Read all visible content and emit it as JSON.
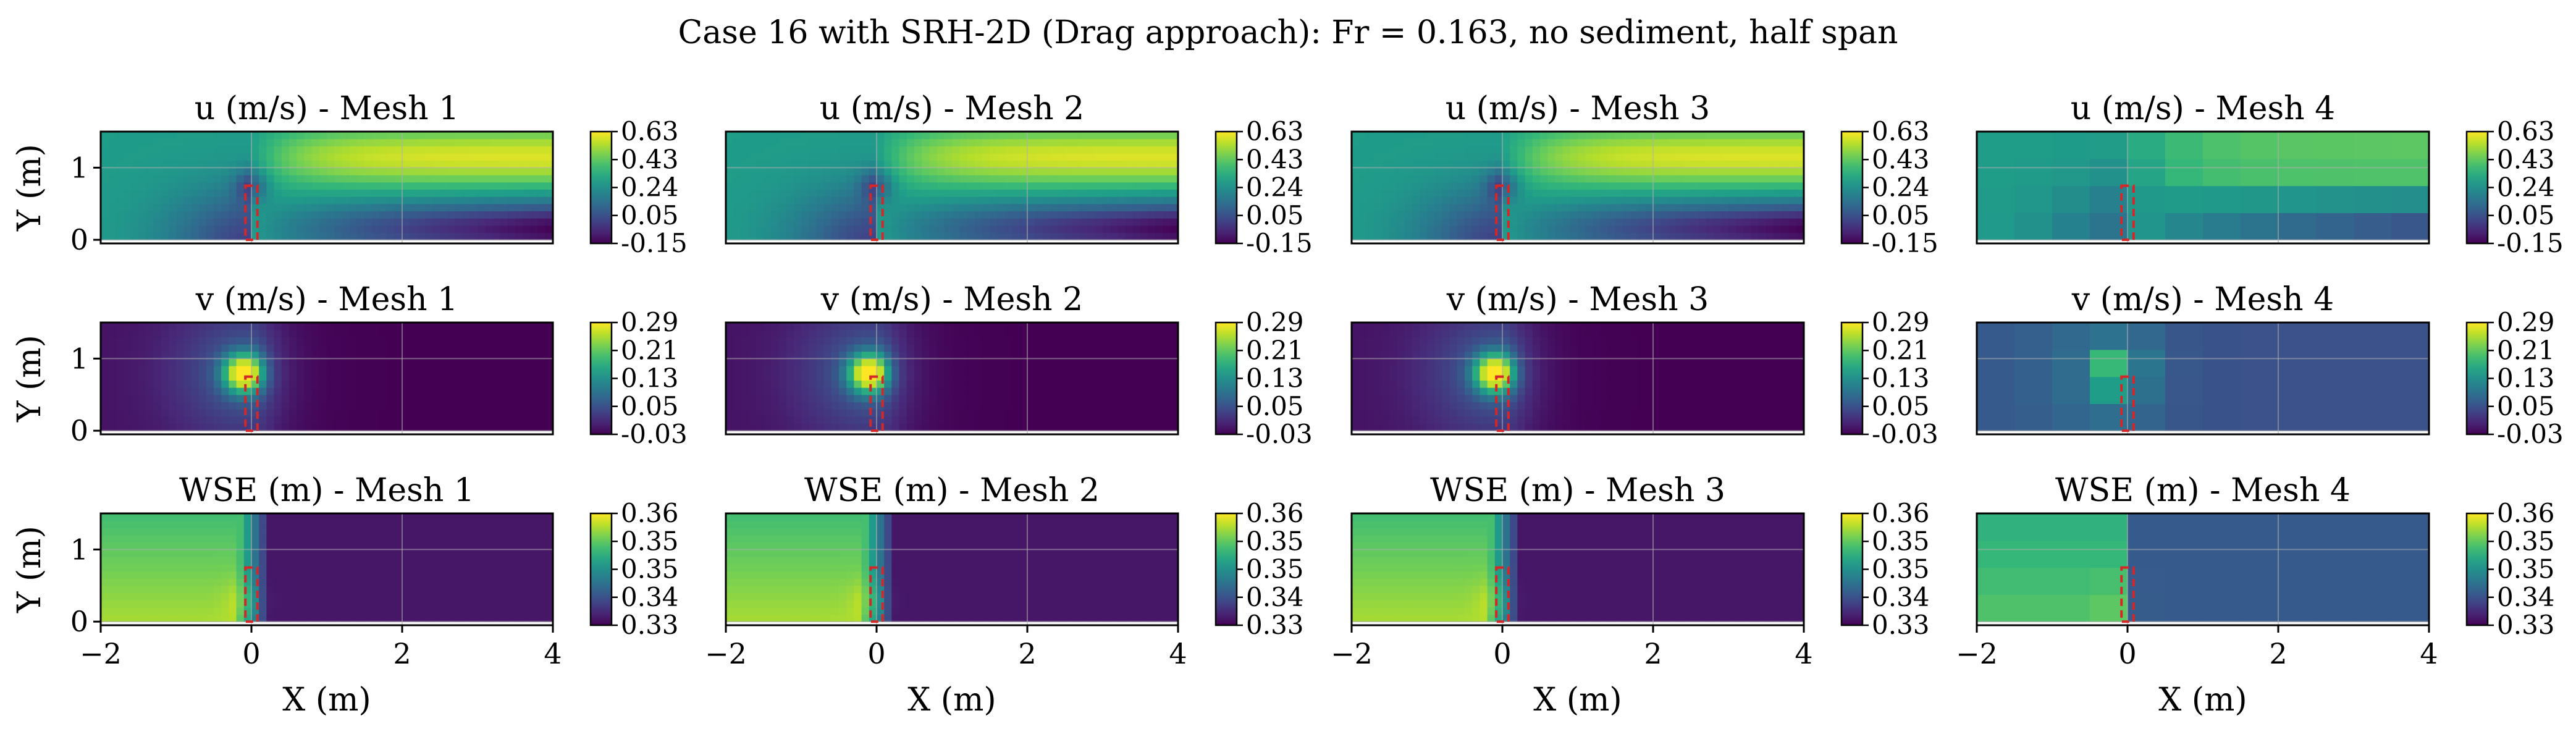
{
  "figure": {
    "title": "Case 16 with SRH-2D (Drag approach): Fr = 0.163, no sediment, half span"
  },
  "colors": {
    "colormap": "viridis",
    "pier_outline": "#d62728",
    "grid": "#b0b0b0"
  },
  "chart_data": {
    "type": "heatmap",
    "layout": {
      "rows": 3,
      "cols": 4
    },
    "x_axis": {
      "label": "X (m)",
      "range": [
        -2,
        4
      ],
      "ticks": [
        -2,
        0,
        2,
        4
      ],
      "tick_labels": [
        "−2",
        "0",
        "2",
        "4"
      ]
    },
    "y_axis": {
      "label": "Y (m)",
      "range": [
        -0.05,
        1.5
      ],
      "ticks": [
        0,
        1
      ],
      "tick_labels": [
        "0",
        "1"
      ]
    },
    "pier": {
      "x_range": [
        -0.08,
        0.08
      ],
      "y_range": [
        0,
        0.75
      ],
      "style": "dashed"
    },
    "meshes": [
      "Mesh 1",
      "Mesh 2",
      "Mesh 3",
      "Mesh 4"
    ],
    "variables": [
      {
        "key": "u",
        "name": "u (m/s)",
        "range": [
          -0.15,
          0.63
        ],
        "colorbar_ticks": [
          "0.63",
          "0.43",
          "0.24",
          "0.05",
          "-0.15"
        ],
        "panel_titles": [
          "u (m/s) - Mesh 1",
          "u (m/s) - Mesh 2",
          "u (m/s) - Mesh 3",
          "u (m/s) - Mesh 4"
        ]
      },
      {
        "key": "v",
        "name": "v (m/s)",
        "range": [
          -0.03,
          0.29
        ],
        "colorbar_ticks": [
          "0.29",
          "0.21",
          "0.13",
          "0.05",
          "-0.03"
        ],
        "panel_titles": [
          "v (m/s) - Mesh 1",
          "v (m/s) - Mesh 2",
          "v (m/s) - Mesh 3",
          "v (m/s) - Mesh 4"
        ]
      },
      {
        "key": "wse",
        "name": "WSE (m)",
        "range": [
          0.33,
          0.36
        ],
        "colorbar_ticks": [
          "0.36",
          "0.35",
          "0.35",
          "0.34",
          "0.33"
        ],
        "panel_titles": [
          "WSE (m) - Mesh 1",
          "WSE (m) - Mesh 2",
          "WSE (m) - Mesh 3",
          "WSE (m) - Mesh 4"
        ]
      }
    ],
    "mesh_coarse_factor": [
      1,
      1,
      1,
      5
    ]
  }
}
